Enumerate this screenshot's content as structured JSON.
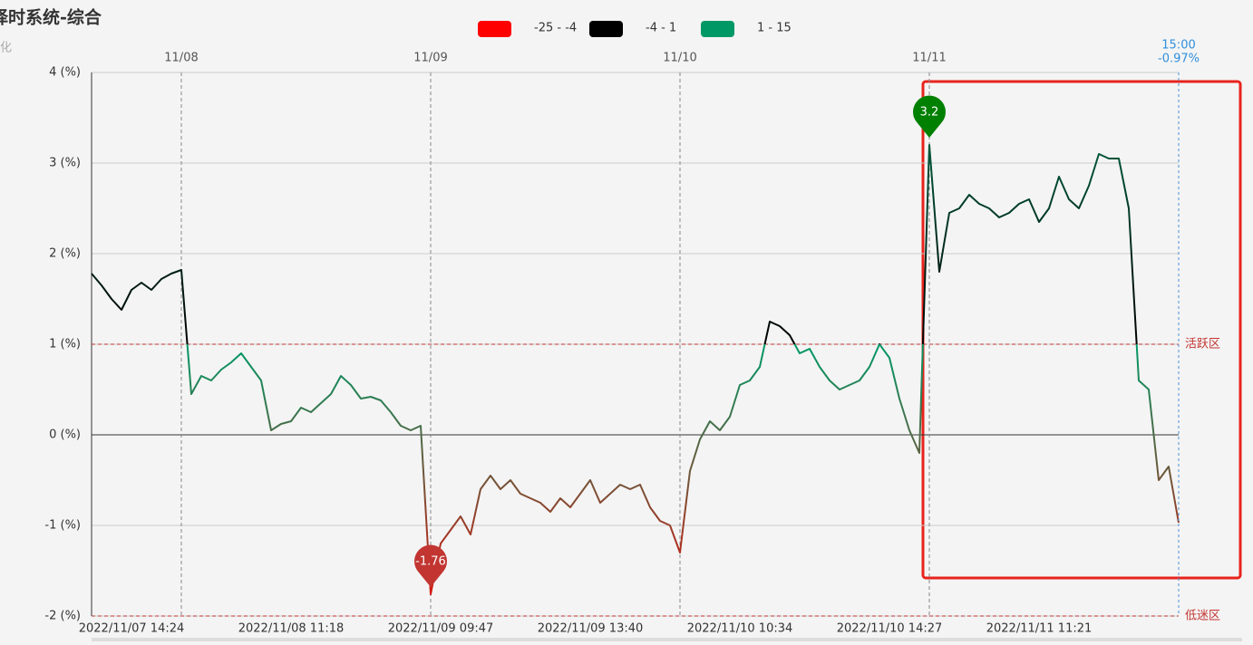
{
  "chart_data": {
    "type": "line",
    "title": "择时系统-综合",
    "subtitle": "化",
    "legend_pieces": [
      {
        "label": "-25 - -4",
        "min": -25,
        "max": -4,
        "color": "#ff0000"
      },
      {
        "label": "-4 - 1",
        "min": -4,
        "max": 1,
        "color": "#000000"
      },
      {
        "label": "1 - 15",
        "min": 1,
        "max": 15,
        "color": "#009966"
      }
    ],
    "categories": [
      null,
      null,
      null,
      null,
      "2022/11/07 14:24",
      null,
      null,
      null,
      null,
      null,
      null,
      null,
      null,
      null,
      null,
      null,
      null,
      null,
      null,
      null,
      "2022/11/08 11:18",
      null,
      null,
      null,
      null,
      null,
      null,
      null,
      null,
      null,
      null,
      null,
      null,
      null,
      null,
      "2022/11/09 09:47",
      null,
      null,
      null,
      null,
      null,
      null,
      null,
      null,
      null,
      null,
      null,
      null,
      null,
      null,
      "2022/11/09 13:40",
      null,
      null,
      null,
      null,
      null,
      null,
      null,
      null,
      null,
      null,
      null,
      null,
      null,
      null,
      "2022/11/10 10:34",
      null,
      null,
      null,
      null,
      null,
      null,
      null,
      null,
      null,
      null,
      null,
      null,
      null,
      null,
      "2022/11/10 14:27",
      null,
      null,
      null,
      null,
      null,
      null,
      null,
      null,
      null,
      null,
      null,
      null,
      null,
      null,
      "2022/11/11 11:21",
      null,
      null,
      null,
      null,
      null,
      null,
      null,
      null,
      null,
      null,
      null,
      null,
      null,
      null
    ],
    "values": [
      1.78,
      1.65,
      1.5,
      1.38,
      1.6,
      1.68,
      1.6,
      1.72,
      1.78,
      1.82,
      0.45,
      0.65,
      0.6,
      0.72,
      0.8,
      0.9,
      0.75,
      0.6,
      0.05,
      0.12,
      0.15,
      0.3,
      0.25,
      0.35,
      0.45,
      0.65,
      0.55,
      0.4,
      0.42,
      0.38,
      0.25,
      0.1,
      0.05,
      0.1,
      -1.76,
      -1.2,
      -1.05,
      -0.9,
      -1.1,
      -0.6,
      -0.45,
      -0.6,
      -0.5,
      -0.65,
      -0.7,
      -0.75,
      -0.85,
      -0.7,
      -0.8,
      -0.65,
      -0.5,
      -0.75,
      -0.65,
      -0.55,
      -0.6,
      -0.55,
      -0.8,
      -0.95,
      -1.0,
      -1.3,
      -0.4,
      -0.05,
      0.15,
      0.05,
      0.2,
      0.55,
      0.6,
      0.75,
      1.25,
      1.2,
      1.1,
      0.9,
      0.95,
      0.75,
      0.6,
      0.5,
      0.55,
      0.6,
      0.75,
      1.0,
      0.85,
      0.4,
      0.05,
      -0.2,
      3.2,
      1.8,
      2.45,
      2.5,
      2.65,
      2.55,
      2.5,
      2.4,
      2.45,
      2.55,
      2.6,
      2.35,
      2.5,
      2.85,
      2.6,
      2.5,
      2.75,
      3.1,
      3.05,
      3.05,
      2.5,
      0.6,
      0.5,
      -0.5,
      -0.35,
      -0.97
    ],
    "day_labels": [
      {
        "index": 9,
        "label": "11/08"
      },
      {
        "index": 34,
        "label": "11/09"
      },
      {
        "index": 59,
        "label": "11/10"
      },
      {
        "index": 84,
        "label": "11/11"
      }
    ],
    "ylim": [
      -2,
      4
    ],
    "yticks": [
      {
        "value": -2,
        "label": "-2 (%)"
      },
      {
        "value": -1,
        "label": "-1 (%)"
      },
      {
        "value": 0,
        "label": "0 (%)"
      },
      {
        "value": 1,
        "label": "1 (%)"
      },
      {
        "value": 2,
        "label": "2 (%)"
      },
      {
        "value": 3,
        "label": "3 (%)"
      },
      {
        "value": 4,
        "label": "4 (%)"
      }
    ],
    "grid": true,
    "threshold_lines": [
      {
        "value": 1,
        "label": "活跃区"
      },
      {
        "value": -2,
        "label": "低迷区"
      }
    ],
    "mark_points": [
      {
        "index": 34,
        "value": -1.76,
        "color": "#c23531"
      },
      {
        "index": 84,
        "value": 3.2,
        "color": "#008000"
      }
    ],
    "end_label": {
      "time": "15:00",
      "value_label": "-0.97%"
    }
  }
}
